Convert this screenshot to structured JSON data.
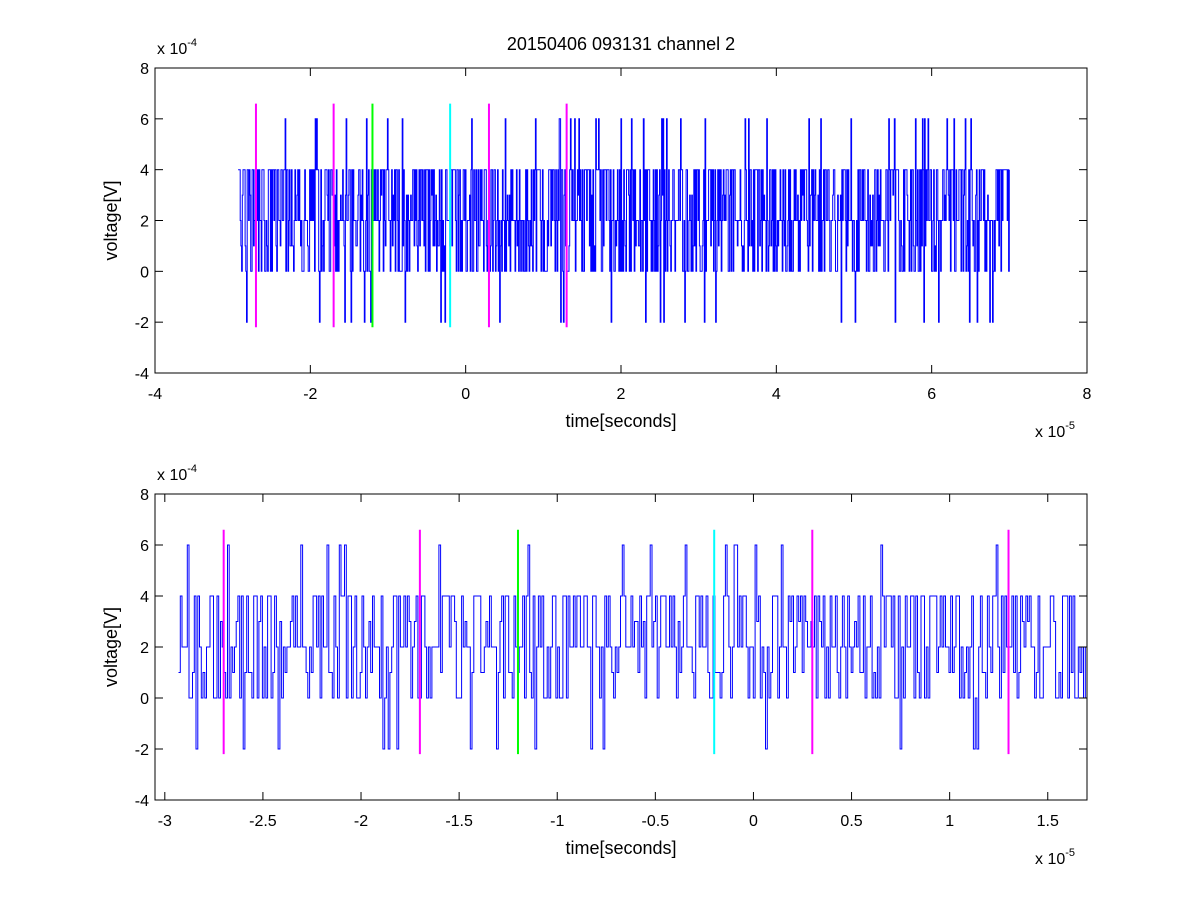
{
  "chart_data": [
    {
      "type": "line",
      "title": "20150406 093131 channel 2",
      "xlabel": "time[seconds]",
      "ylabel": "voltage[V]",
      "x_exponent": {
        "base": "x 10",
        "power": "-5"
      },
      "y_exponent": {
        "base": "x 10",
        "power": "-4"
      },
      "xlim": [
        -4,
        8
      ],
      "ylim": [
        -4,
        8
      ],
      "x_ticks": [
        "-4",
        "-2",
        "0",
        "2",
        "4",
        "6",
        "8"
      ],
      "y_ticks": [
        "-4",
        "-2",
        "0",
        "2",
        "4",
        "6",
        "8"
      ],
      "grid": false,
      "signal": {
        "color": "#0000ff",
        "x_range": [
          -2.93,
          7.0
        ],
        "levels": [
          -2,
          0,
          1,
          2,
          3,
          4,
          6
        ],
        "typical_low": 0,
        "typical_high": 4
      },
      "markers": [
        {
          "x": -2.7,
          "color": "#ff00ff"
        },
        {
          "x": -1.7,
          "color": "#ff00ff"
        },
        {
          "x": -1.2,
          "color": "#00ff00"
        },
        {
          "x": -0.2,
          "color": "#00ffff"
        },
        {
          "x": 0.3,
          "color": "#ff00ff"
        },
        {
          "x": 1.3,
          "color": "#ff00ff"
        }
      ],
      "marker_range": [
        -2.2,
        6.6
      ]
    },
    {
      "type": "line",
      "xlabel": "time[seconds]",
      "ylabel": "voltage[V]",
      "x_exponent": {
        "base": "x 10",
        "power": "-5"
      },
      "y_exponent": {
        "base": "x 10",
        "power": "-4"
      },
      "xlim": [
        -3.05,
        1.7
      ],
      "ylim": [
        -4,
        8
      ],
      "x_ticks": [
        "-3",
        "-2.5",
        "-2",
        "-1.5",
        "-1",
        "-0.5",
        "0",
        "0.5",
        "1",
        "1.5"
      ],
      "y_ticks": [
        "-4",
        "-2",
        "0",
        "2",
        "4",
        "6",
        "8"
      ],
      "grid": false,
      "signal": {
        "color": "#0000ff",
        "x_range": [
          -2.93,
          1.7
        ],
        "levels": [
          -2,
          0,
          1,
          2,
          3,
          4,
          6
        ],
        "typical_low": 0,
        "typical_high": 4
      },
      "markers": [
        {
          "x": -2.7,
          "color": "#ff00ff"
        },
        {
          "x": -1.7,
          "color": "#ff00ff"
        },
        {
          "x": -1.2,
          "color": "#00ff00"
        },
        {
          "x": -0.2,
          "color": "#00ffff"
        },
        {
          "x": 0.3,
          "color": "#ff00ff"
        },
        {
          "x": 1.3,
          "color": "#ff00ff"
        }
      ],
      "marker_range": [
        -2.2,
        6.6
      ]
    }
  ]
}
